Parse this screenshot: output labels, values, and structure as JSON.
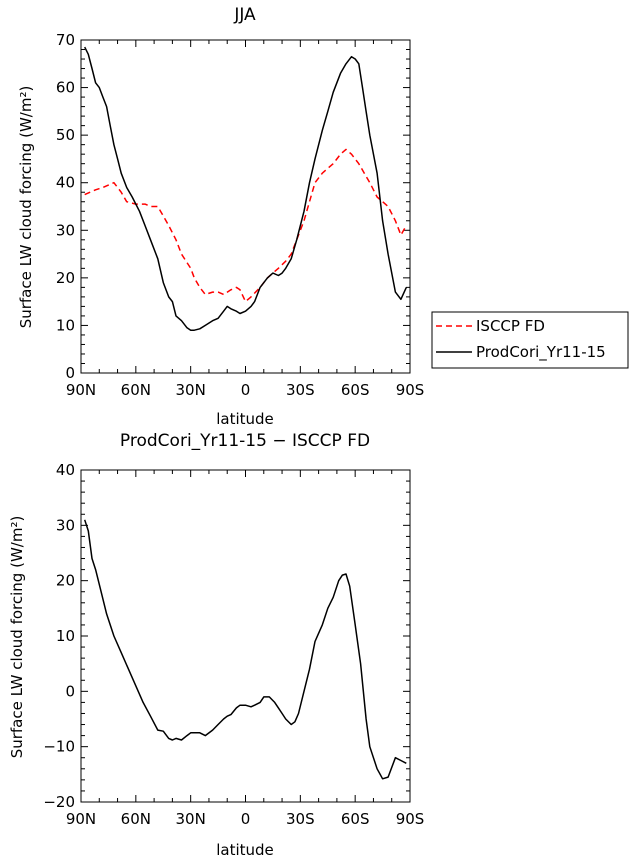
{
  "chart_data": [
    {
      "type": "line",
      "title": "JJA",
      "xlabel": "latitude",
      "ylabel": "Surface LW cloud forcing (W/m²)",
      "xlim": [
        -90,
        90
      ],
      "ylim": [
        0,
        70
      ],
      "xticks": [
        -90,
        -60,
        -30,
        0,
        30,
        60,
        90
      ],
      "xtick_labels": [
        "90N",
        "60N",
        "30N",
        "0",
        "30S",
        "60S",
        "90S"
      ],
      "yticks": [
        0,
        10,
        20,
        30,
        40,
        50,
        60,
        70
      ],
      "ytick_labels": [
        "0",
        "10",
        "20",
        "30",
        "40",
        "50",
        "60",
        "70"
      ],
      "legend": "right",
      "series": [
        {
          "name": "ISCCP FD",
          "color": "#ff0000",
          "style": "dashed",
          "x": [
            -88,
            -85,
            -82,
            -78,
            -75,
            -72,
            -68,
            -65,
            -60,
            -55,
            -52,
            -48,
            -45,
            -42,
            -38,
            -35,
            -30,
            -28,
            -25,
            -22,
            -18,
            -15,
            -12,
            -8,
            -5,
            -3,
            0,
            3,
            8,
            12,
            18,
            22,
            25,
            28,
            32,
            35,
            38,
            42,
            45,
            48,
            52,
            55,
            58,
            62,
            65,
            68,
            72,
            75,
            78,
            82,
            85,
            88
          ],
          "y": [
            37.5,
            38,
            38.5,
            39,
            39.5,
            40,
            38,
            36,
            35.5,
            35.5,
            35,
            35,
            33,
            31,
            28,
            25,
            22,
            20,
            18,
            16.5,
            17,
            17,
            16.5,
            17.5,
            18,
            17.5,
            15,
            16,
            18,
            20,
            22,
            23.5,
            25,
            28,
            32,
            36,
            40,
            42,
            43,
            44,
            46,
            47,
            46,
            44,
            42,
            40,
            37,
            36,
            35,
            32,
            29,
            31
          ]
        },
        {
          "name": "ProdCori_Yr11-15",
          "color": "#000000",
          "style": "solid",
          "x": [
            -88,
            -86,
            -84,
            -82,
            -80,
            -78,
            -76,
            -74,
            -72,
            -70,
            -68,
            -65,
            -62,
            -58,
            -55,
            -52,
            -48,
            -45,
            -42,
            -40,
            -38,
            -35,
            -32,
            -30,
            -28,
            -25,
            -22,
            -18,
            -15,
            -12,
            -10,
            -8,
            -5,
            -3,
            0,
            3,
            5,
            8,
            12,
            15,
            18,
            20,
            22,
            25,
            28,
            32,
            35,
            38,
            42,
            45,
            48,
            52,
            55,
            58,
            60,
            62,
            64,
            66,
            68,
            72,
            75,
            78,
            82,
            85,
            88
          ],
          "y": [
            68.5,
            67,
            64,
            61,
            60,
            58,
            56,
            52,
            48,
            45,
            42,
            39,
            37,
            34,
            31,
            28,
            24,
            19,
            16,
            15,
            12,
            11,
            9.5,
            9,
            9,
            9.3,
            10,
            11,
            11.5,
            13,
            14,
            13.5,
            13,
            12.5,
            13,
            14,
            15,
            18,
            20,
            21,
            20.5,
            21,
            22,
            24,
            28,
            34,
            40,
            45,
            51,
            55,
            59,
            63,
            65,
            66.5,
            66,
            65,
            60,
            55,
            50,
            42,
            32,
            25,
            17,
            15.5,
            18
          ]
        }
      ]
    },
    {
      "type": "line",
      "title": "ProdCori_Yr11-15 − ISCCP FD",
      "xlabel": "latitude",
      "ylabel": "Surface LW cloud forcing (W/m²)",
      "xlim": [
        -90,
        90
      ],
      "ylim": [
        -20,
        40
      ],
      "xticks": [
        -90,
        -60,
        -30,
        0,
        30,
        60,
        90
      ],
      "xtick_labels": [
        "90N",
        "60N",
        "30N",
        "0",
        "30S",
        "60S",
        "90S"
      ],
      "yticks": [
        -20,
        -10,
        0,
        10,
        20,
        30,
        40
      ],
      "ytick_labels": [
        "−20",
        "−10",
        "0",
        "10",
        "20",
        "30",
        "40"
      ],
      "series": [
        {
          "name": "ProdCori_Yr11-15 - ISCCP FD",
          "color": "#000000",
          "style": "solid",
          "x": [
            -88,
            -86,
            -84,
            -82,
            -79,
            -76,
            -72,
            -68,
            -64,
            -60,
            -56,
            -52,
            -48,
            -45,
            -42,
            -40,
            -38,
            -35,
            -32,
            -30,
            -28,
            -25,
            -22,
            -18,
            -15,
            -12,
            -10,
            -8,
            -5,
            -3,
            0,
            3,
            5,
            8,
            10,
            13,
            16,
            18,
            20,
            22,
            25,
            27,
            29,
            32,
            35,
            38,
            42,
            45,
            48,
            51,
            53,
            55,
            57,
            60,
            63,
            66,
            68,
            72,
            75,
            78,
            82,
            85,
            88
          ],
          "y": [
            31,
            29,
            24,
            22,
            18,
            14,
            10,
            7,
            4,
            1,
            -2,
            -4.5,
            -7,
            -7.2,
            -8.5,
            -8.8,
            -8.5,
            -8.8,
            -8,
            -7.5,
            -7.5,
            -7.5,
            -8,
            -7,
            -6,
            -5,
            -4.5,
            -4.2,
            -3,
            -2.5,
            -2.5,
            -2.8,
            -2.5,
            -2,
            -1,
            -1,
            -2,
            -3,
            -4,
            -5,
            -6,
            -5.5,
            -4,
            0,
            4,
            9,
            12,
            15,
            17,
            20,
            21,
            21.2,
            19,
            12,
            5,
            -5,
            -10,
            -14,
            -15.8,
            -15.5,
            -12,
            -12.5,
            -13
          ]
        }
      ]
    }
  ]
}
